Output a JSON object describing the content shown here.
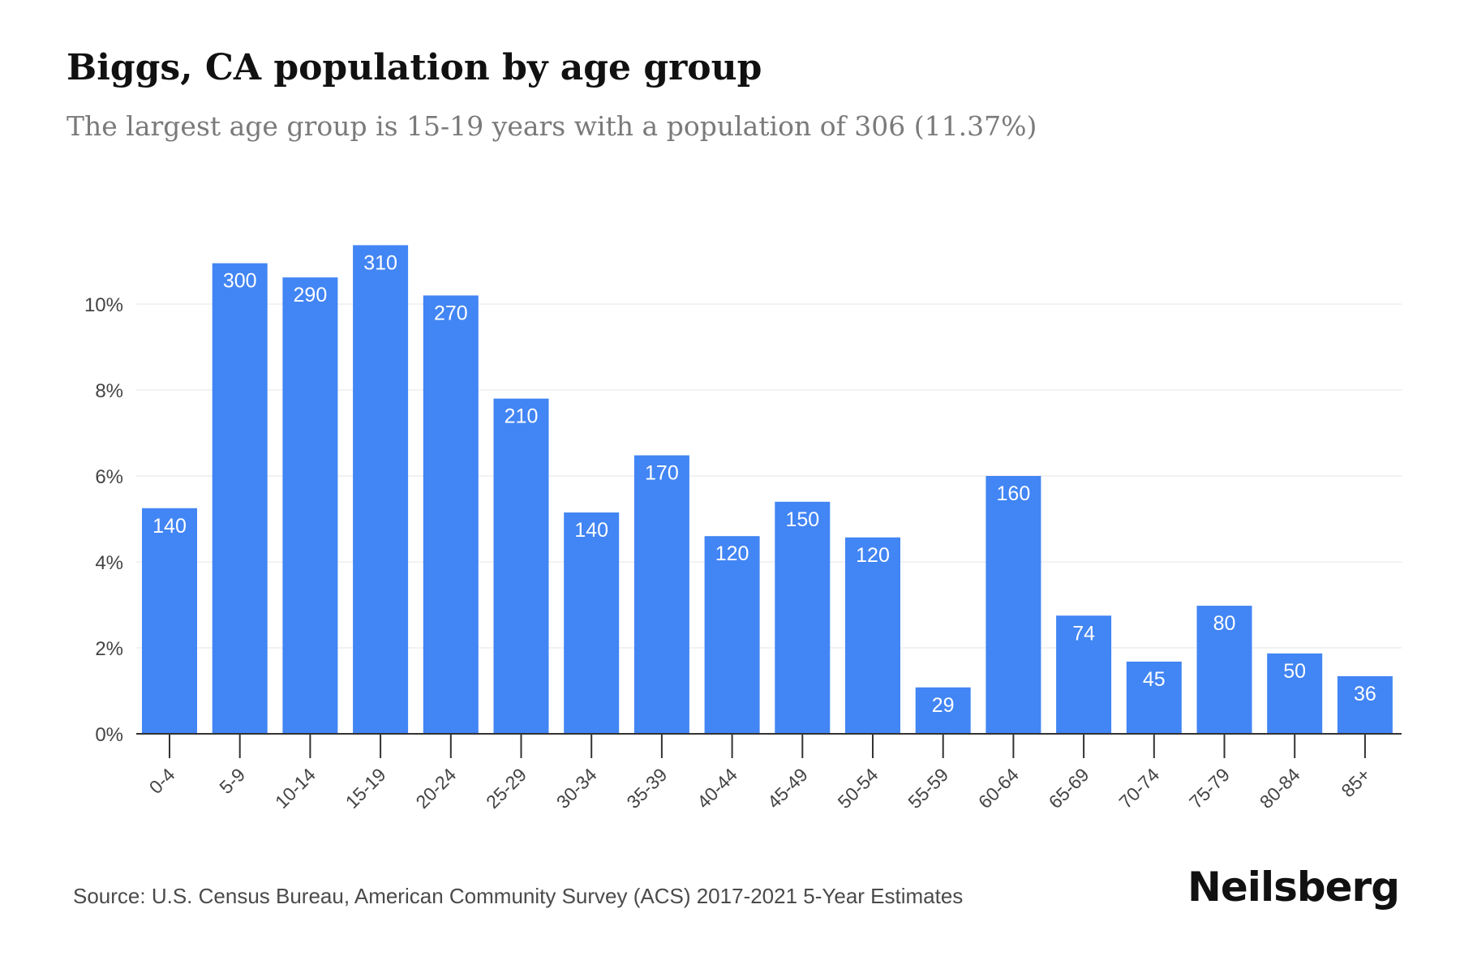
{
  "header": {
    "title": "Biggs, CA population by age group",
    "subtitle": "The largest age group is 15-19 years with a population of 306 (11.37%)"
  },
  "footer": {
    "source": "Source: U.S. Census Bureau, American Community Survey (ACS) 2017-2021 5-Year Estimates",
    "brand": "Neilsberg"
  },
  "colors": {
    "bar": "#4285f4",
    "grid": "#eeeeee",
    "axis": "#333333",
    "tick_text": "#444444",
    "bar_label": "#ffffff"
  },
  "chart_data": {
    "type": "bar",
    "title": "Biggs, CA population by age group",
    "xlabel": "",
    "ylabel": "",
    "ylim": [
      0,
      12
    ],
    "yticks": [
      0,
      2,
      4,
      6,
      8,
      10
    ],
    "ytick_labels": [
      "0%",
      "2%",
      "4%",
      "6%",
      "8%",
      "10%"
    ],
    "grid": true,
    "categories": [
      "0-4",
      "5-9",
      "10-14",
      "15-19",
      "20-24",
      "25-29",
      "30-34",
      "35-39",
      "40-44",
      "45-49",
      "50-54",
      "55-59",
      "60-64",
      "65-69",
      "70-74",
      "75-79",
      "80-84",
      "85+"
    ],
    "values": [
      5.25,
      10.95,
      10.62,
      11.37,
      10.2,
      7.8,
      5.15,
      6.48,
      4.6,
      5.4,
      4.57,
      1.08,
      6.0,
      2.75,
      1.68,
      2.98,
      1.87,
      1.34
    ],
    "labels": [
      "140",
      "300",
      "290",
      "310",
      "270",
      "210",
      "140",
      "170",
      "120",
      "150",
      "120",
      "29",
      "160",
      "74",
      "45",
      "80",
      "50",
      "36"
    ]
  }
}
